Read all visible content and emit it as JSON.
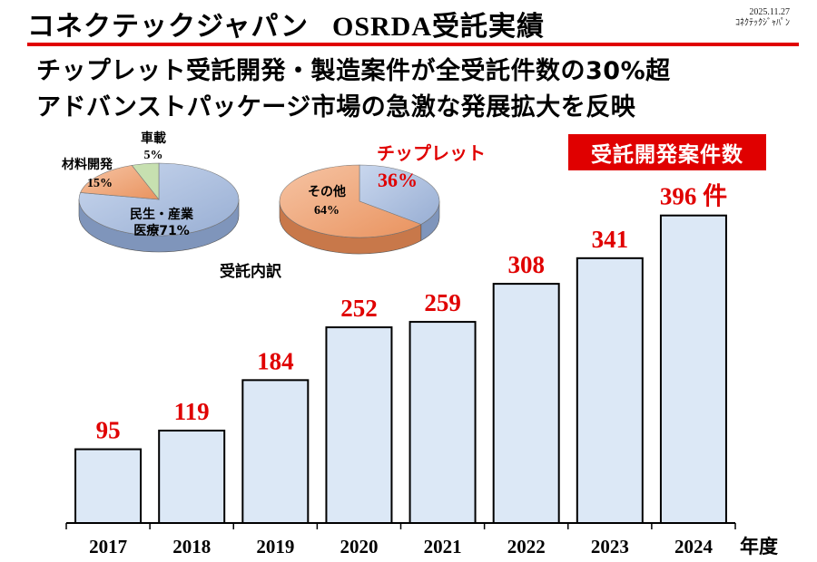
{
  "header": {
    "title_company": "コネクテックジャパン",
    "title_main": "OSRDA受託実績",
    "date": "2025.11.27",
    "company_small": "ｺﾈｸﾃｯｸｼﾞｬﾊﾟﾝ"
  },
  "headline": {
    "line1": "チップレット受託開発・製造案件が全受託件数の30%超",
    "line2": "アドバンストパッケージ市場の急激な発展拡大を反映"
  },
  "badge": "受託開発案件数",
  "colors": {
    "accent": "#e00000",
    "bar_fill": "#dce8f6",
    "pie_blue": "#a9bddd",
    "pie_orange": "#f0ab7e",
    "pie_green": "#c7e0b0"
  },
  "chart_data": [
    {
      "type": "bar",
      "title": "受託開発案件数",
      "categories": [
        "2017",
        "2018",
        "2019",
        "2020",
        "2021",
        "2022",
        "2023",
        "2024"
      ],
      "values": [
        95,
        119,
        184,
        252,
        259,
        308,
        341,
        396
      ],
      "value_labels": [
        "95",
        "119",
        "184",
        "252",
        "259",
        "308",
        "341",
        "396 件"
      ],
      "xlabel": "年度",
      "ylabel": "",
      "ylim": [
        0,
        440
      ],
      "grid": false
    },
    {
      "type": "pie",
      "title": "受託内訳",
      "slices": [
        {
          "name": "民生・産業医療",
          "label_lines": [
            "民生・産業",
            "医療71%"
          ],
          "value": 71
        },
        {
          "name": "材料開発",
          "label_lines": [
            "材料開発",
            "15%"
          ],
          "value": 15
        },
        {
          "name": "車載",
          "label_lines": [
            "車載",
            "5%"
          ],
          "value": 5
        }
      ]
    },
    {
      "type": "pie",
      "title": "",
      "slices": [
        {
          "name": "チップレット",
          "label_lines": [
            "チップレット",
            "36%"
          ],
          "value": 36
        },
        {
          "name": "その他",
          "label_lines": [
            "その他",
            "64%"
          ],
          "value": 64
        }
      ]
    }
  ]
}
